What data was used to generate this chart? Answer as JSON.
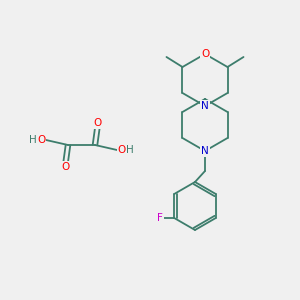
{
  "bg_color": "#F0F0F0",
  "atom_colors": {
    "O": "#FF0000",
    "N": "#0000CD",
    "F": "#CC00CC",
    "C": "#3D7D6C",
    "H": "#3D7D6C"
  },
  "bond_color": "#3D7D6C",
  "bond_width": 1.3,
  "figsize": [
    3.0,
    3.0
  ],
  "dpi": 100
}
